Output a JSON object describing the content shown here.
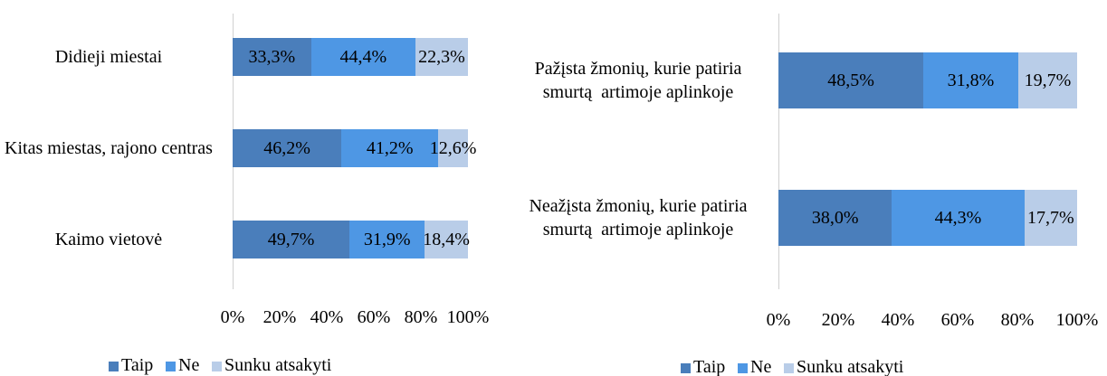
{
  "chart_data": [
    {
      "type": "stacked-bar-horizontal",
      "categories": [
        "Didieji miestai",
        "Kitas miestas, rajono centras",
        "Kaimo vietovė"
      ],
      "series": [
        {
          "name": "Taip",
          "color": "#4a7ebb",
          "values": [
            33.3,
            46.2,
            49.7
          ],
          "value_labels": [
            "33,3%",
            "46,2%",
            "49,7%"
          ]
        },
        {
          "name": "Ne",
          "color": "#4e97e4",
          "values": [
            44.4,
            41.2,
            31.9
          ],
          "value_labels": [
            "44,4%",
            "41,2%",
            "31,9%"
          ]
        },
        {
          "name": "Sunku atsakyti",
          "color": "#b9cde8",
          "values": [
            22.3,
            12.6,
            18.4
          ],
          "value_labels": [
            "22,3%",
            "12,6%",
            "18,4%"
          ]
        }
      ],
      "xlim": [
        0,
        100
      ],
      "xticks": [
        {
          "value": 0,
          "label": "0%"
        },
        {
          "value": 20,
          "label": "20%"
        },
        {
          "value": 40,
          "label": "40%"
        },
        {
          "value": 60,
          "label": "60%"
        },
        {
          "value": 80,
          "label": "80%"
        },
        {
          "value": 100,
          "label": "100%"
        }
      ],
      "legend": "bottom"
    },
    {
      "type": "stacked-bar-horizontal",
      "categories": [
        "Pažįsta žmonių, kurie patiria smurtą  artimoje aplinkoje",
        "Neažįsta žmonių, kurie patiria smurtą  artimoje aplinkoje"
      ],
      "series": [
        {
          "name": "Taip",
          "color": "#4a7ebb",
          "values": [
            48.5,
            38.0
          ],
          "value_labels": [
            "48,5%",
            "38,0%"
          ]
        },
        {
          "name": "Ne",
          "color": "#4e97e4",
          "values": [
            31.8,
            44.3
          ],
          "value_labels": [
            "31,8%",
            "44,3%"
          ]
        },
        {
          "name": "Sunku atsakyti",
          "color": "#b9cde8",
          "values": [
            19.7,
            17.7
          ],
          "value_labels": [
            "19,7%",
            "17,7%"
          ]
        }
      ],
      "xlim": [
        0,
        100
      ],
      "xticks": [
        {
          "value": 0,
          "label": "0%"
        },
        {
          "value": 20,
          "label": "20%"
        },
        {
          "value": 40,
          "label": "40%"
        },
        {
          "value": 60,
          "label": "60%"
        },
        {
          "value": 80,
          "label": "80%"
        },
        {
          "value": 100,
          "label": "100%"
        }
      ],
      "legend": "bottom"
    }
  ]
}
